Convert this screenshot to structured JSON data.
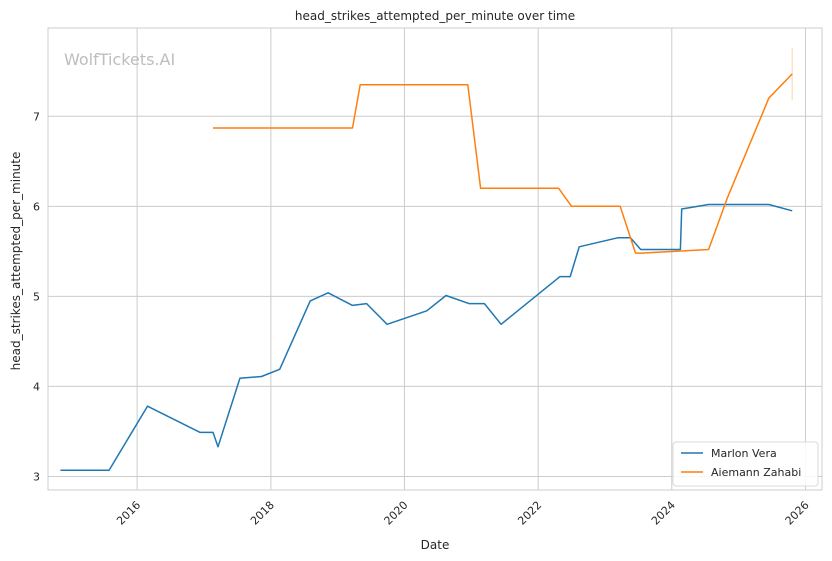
{
  "chart_data": {
    "type": "line",
    "title": "head_strikes_attempted_per_minute over time",
    "xlabel": "Date",
    "ylabel": "head_strikes_attempted_per_minute",
    "watermark": "WolfTickets.AI",
    "xlim": [
      "2014-09-01",
      "2026-04-01"
    ],
    "ylim": [
      2.85,
      7.98
    ],
    "x_ticks": [
      "2016-01-01",
      "2018-01-01",
      "2020-01-01",
      "2022-01-01",
      "2024-01-01",
      "2026-01-01"
    ],
    "x_tick_labels": [
      "2016",
      "2018",
      "2020",
      "2022",
      "2024",
      "2026"
    ],
    "y_ticks": [
      3,
      4,
      5,
      6,
      7
    ],
    "y_tick_labels": [
      "3",
      "4",
      "5",
      "6",
      "7"
    ],
    "grid": true,
    "legend_position": "bottom-right",
    "series": [
      {
        "name": "Marlon Vera",
        "color": "#1f77b4",
        "points": [
          [
            "2014-11-08",
            3.07
          ],
          [
            "2015-08-01",
            3.07
          ],
          [
            "2016-02-27",
            3.78
          ],
          [
            "2016-12-10",
            3.49
          ],
          [
            "2017-02-19",
            3.49
          ],
          [
            "2017-03-18",
            3.33
          ],
          [
            "2017-07-16",
            4.09
          ],
          [
            "2017-11-11",
            4.11
          ],
          [
            "2018-02-18",
            4.19
          ],
          [
            "2018-08-04",
            4.95
          ],
          [
            "2018-11-10",
            5.04
          ],
          [
            "2019-03-23",
            4.9
          ],
          [
            "2019-06-08",
            4.92
          ],
          [
            "2019-09-28",
            4.69
          ],
          [
            "2020-05-02",
            4.84
          ],
          [
            "2020-08-15",
            5.01
          ],
          [
            "2020-12-19",
            4.92
          ],
          [
            "2021-03-13",
            4.92
          ],
          [
            "2021-06-12",
            4.69
          ],
          [
            "2022-04-30",
            5.22
          ],
          [
            "2022-06-25",
            5.22
          ],
          [
            "2022-08-13",
            5.55
          ],
          [
            "2023-03-11",
            5.65
          ],
          [
            "2023-05-20",
            5.65
          ],
          [
            "2023-07-15",
            5.52
          ],
          [
            "2024-02-17",
            5.52
          ],
          [
            "2024-02-24",
            5.97
          ],
          [
            "2024-07-20",
            6.02
          ],
          [
            "2025-06-15",
            6.02
          ],
          [
            "2025-10-20",
            5.95
          ]
        ]
      },
      {
        "name": "Aiemann Zahabi",
        "color": "#ff7f0e",
        "points": [
          [
            "2017-02-19",
            6.87
          ],
          [
            "2019-03-23",
            6.87
          ],
          [
            "2019-05-04",
            7.35
          ],
          [
            "2020-12-12",
            7.35
          ],
          [
            "2021-02-20",
            6.2
          ],
          [
            "2022-04-23",
            6.2
          ],
          [
            "2022-07-02",
            6.0
          ],
          [
            "2023-03-25",
            6.0
          ],
          [
            "2023-06-17",
            5.48
          ],
          [
            "2023-07-20",
            5.48
          ],
          [
            "2024-07-20",
            5.52
          ],
          [
            "2024-11-01",
            6.1
          ],
          [
            "2025-06-14",
            7.2
          ],
          [
            "2025-10-20",
            7.47
          ]
        ],
        "range_marker": {
          "x": "2025-10-20",
          "low": 7.18,
          "high": 7.76
        }
      }
    ]
  }
}
